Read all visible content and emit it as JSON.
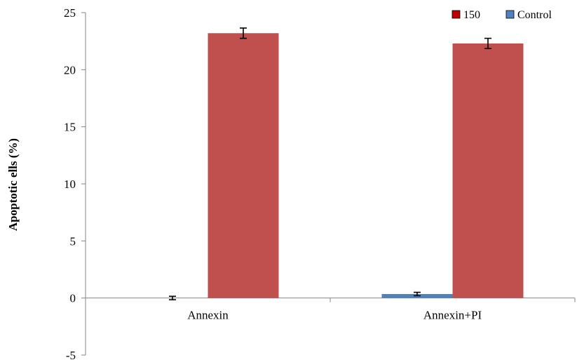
{
  "chart_data": {
    "type": "bar",
    "title": "",
    "xlabel": "",
    "ylabel": "Apoptotic ells (%)",
    "categories": [
      "Annexin",
      "Annexin+PI"
    ],
    "series": [
      {
        "name": "Control",
        "color": "#4f81bd",
        "values": [
          0.0,
          0.35
        ],
        "errors": [
          0.15,
          0.15
        ]
      },
      {
        "name": "150",
        "color": "#c0504d",
        "values": [
          23.2,
          22.3
        ],
        "errors": [
          0.45,
          0.45
        ]
      }
    ],
    "legend_order": [
      "150",
      "Control"
    ],
    "legend_colors": {
      "150": "#c00000",
      "Control": "#4f81bd"
    },
    "ylim": [
      -5,
      25
    ],
    "yticks": [
      "-5",
      "0",
      "5",
      "10",
      "15",
      "20",
      "25"
    ],
    "grid": false,
    "legend_position": "top-right"
  }
}
